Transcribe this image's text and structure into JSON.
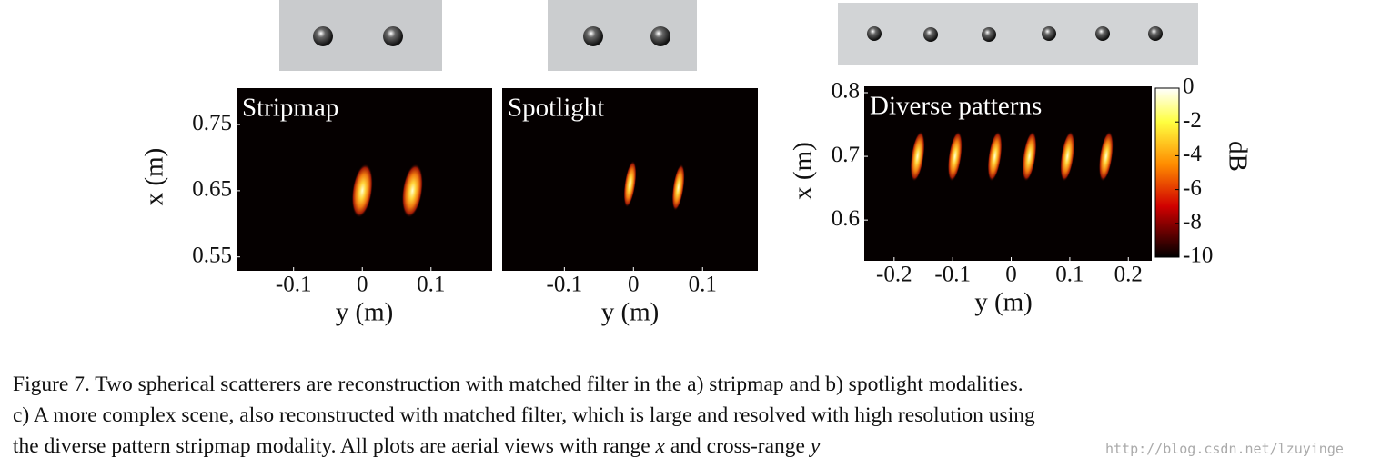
{
  "chart_data": [
    {
      "type": "heatmap",
      "title": "Stripmap",
      "xlabel": "y (m)",
      "ylabel": "x (m)",
      "x": [
        0.0,
        0.073
      ],
      "values": [
        0.65,
        0.65
      ],
      "xlim": [
        -0.183,
        0.189
      ],
      "ylim": [
        0.529,
        0.805
      ],
      "xticks": [
        -0.1,
        0,
        0.1
      ],
      "yticks": [
        0.55,
        0.65,
        0.75
      ]
    },
    {
      "type": "heatmap",
      "title": "Spotlight",
      "xlabel": "y (m)",
      "x": [
        -0.005,
        0.065
      ],
      "values": [
        0.66,
        0.655
      ],
      "xlim": [
        -0.19,
        0.18
      ],
      "ylim": [
        0.529,
        0.805
      ],
      "xticks": [
        -0.1,
        0,
        0.1
      ]
    },
    {
      "type": "heatmap",
      "title": "Diverse patterns",
      "xlabel": "y (m)",
      "ylabel": "x (m)",
      "x": [
        -0.16,
        -0.096,
        -0.028,
        0.031,
        0.096,
        0.162
      ],
      "values": [
        0.7,
        0.7,
        0.7,
        0.7,
        0.7,
        0.7
      ],
      "xlim": [
        -0.251,
        0.24
      ],
      "ylim": [
        0.536,
        0.81
      ],
      "xticks": [
        -0.2,
        -0.1,
        0,
        0.1,
        0.2
      ],
      "yticks": [
        0.6,
        0.7,
        0.8
      ],
      "colorbar": {
        "label": "dB",
        "lim": [
          -10,
          0
        ],
        "ticks": [
          0,
          -2,
          -4,
          -6,
          -8,
          -10
        ]
      }
    }
  ],
  "caption": {
    "lines": [
      "Figure 7.  Two spherical scatterers are reconstruction with matched filter in the a) stripmap and b) spotlight modalities.",
      "c) A more complex scene, also reconstructed with matched filter, which is large and resolved with high resolution using"
    ],
    "last_line": [
      "the diverse pattern stripmap modality. All plots are aerial views with range ",
      "x",
      " and cross-range ",
      "y"
    ]
  },
  "watermark": "http://blog.csdn.net/lzuyinge"
}
